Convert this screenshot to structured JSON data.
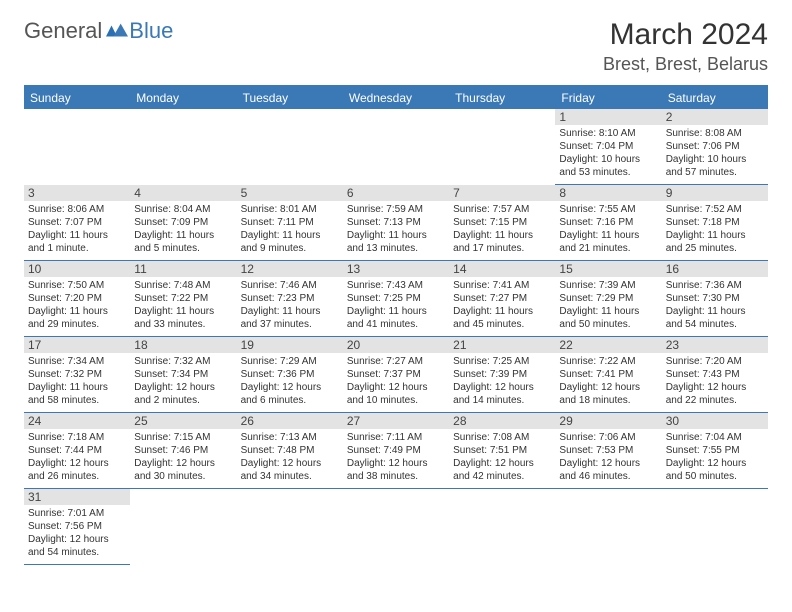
{
  "logo": {
    "part1": "General",
    "part2": "Blue"
  },
  "title": "March 2024",
  "location": "Brest, Brest, Belarus",
  "weekdays": [
    "Sunday",
    "Monday",
    "Tuesday",
    "Wednesday",
    "Thursday",
    "Friday",
    "Saturday"
  ],
  "colors": {
    "accent": "#3a78b6",
    "daybar": "#e3e3e3",
    "text": "#333333"
  },
  "layout": {
    "leading_blanks": 5,
    "days_in_month": 31
  },
  "days": [
    {
      "n": 1,
      "sunrise": "8:10 AM",
      "sunset": "7:04 PM",
      "daylight": "10 hours and 53 minutes."
    },
    {
      "n": 2,
      "sunrise": "8:08 AM",
      "sunset": "7:06 PM",
      "daylight": "10 hours and 57 minutes."
    },
    {
      "n": 3,
      "sunrise": "8:06 AM",
      "sunset": "7:07 PM",
      "daylight": "11 hours and 1 minute."
    },
    {
      "n": 4,
      "sunrise": "8:04 AM",
      "sunset": "7:09 PM",
      "daylight": "11 hours and 5 minutes."
    },
    {
      "n": 5,
      "sunrise": "8:01 AM",
      "sunset": "7:11 PM",
      "daylight": "11 hours and 9 minutes."
    },
    {
      "n": 6,
      "sunrise": "7:59 AM",
      "sunset": "7:13 PM",
      "daylight": "11 hours and 13 minutes."
    },
    {
      "n": 7,
      "sunrise": "7:57 AM",
      "sunset": "7:15 PM",
      "daylight": "11 hours and 17 minutes."
    },
    {
      "n": 8,
      "sunrise": "7:55 AM",
      "sunset": "7:16 PM",
      "daylight": "11 hours and 21 minutes."
    },
    {
      "n": 9,
      "sunrise": "7:52 AM",
      "sunset": "7:18 PM",
      "daylight": "11 hours and 25 minutes."
    },
    {
      "n": 10,
      "sunrise": "7:50 AM",
      "sunset": "7:20 PM",
      "daylight": "11 hours and 29 minutes."
    },
    {
      "n": 11,
      "sunrise": "7:48 AM",
      "sunset": "7:22 PM",
      "daylight": "11 hours and 33 minutes."
    },
    {
      "n": 12,
      "sunrise": "7:46 AM",
      "sunset": "7:23 PM",
      "daylight": "11 hours and 37 minutes."
    },
    {
      "n": 13,
      "sunrise": "7:43 AM",
      "sunset": "7:25 PM",
      "daylight": "11 hours and 41 minutes."
    },
    {
      "n": 14,
      "sunrise": "7:41 AM",
      "sunset": "7:27 PM",
      "daylight": "11 hours and 45 minutes."
    },
    {
      "n": 15,
      "sunrise": "7:39 AM",
      "sunset": "7:29 PM",
      "daylight": "11 hours and 50 minutes."
    },
    {
      "n": 16,
      "sunrise": "7:36 AM",
      "sunset": "7:30 PM",
      "daylight": "11 hours and 54 minutes."
    },
    {
      "n": 17,
      "sunrise": "7:34 AM",
      "sunset": "7:32 PM",
      "daylight": "11 hours and 58 minutes."
    },
    {
      "n": 18,
      "sunrise": "7:32 AM",
      "sunset": "7:34 PM",
      "daylight": "12 hours and 2 minutes."
    },
    {
      "n": 19,
      "sunrise": "7:29 AM",
      "sunset": "7:36 PM",
      "daylight": "12 hours and 6 minutes."
    },
    {
      "n": 20,
      "sunrise": "7:27 AM",
      "sunset": "7:37 PM",
      "daylight": "12 hours and 10 minutes."
    },
    {
      "n": 21,
      "sunrise": "7:25 AM",
      "sunset": "7:39 PM",
      "daylight": "12 hours and 14 minutes."
    },
    {
      "n": 22,
      "sunrise": "7:22 AM",
      "sunset": "7:41 PM",
      "daylight": "12 hours and 18 minutes."
    },
    {
      "n": 23,
      "sunrise": "7:20 AM",
      "sunset": "7:43 PM",
      "daylight": "12 hours and 22 minutes."
    },
    {
      "n": 24,
      "sunrise": "7:18 AM",
      "sunset": "7:44 PM",
      "daylight": "12 hours and 26 minutes."
    },
    {
      "n": 25,
      "sunrise": "7:15 AM",
      "sunset": "7:46 PM",
      "daylight": "12 hours and 30 minutes."
    },
    {
      "n": 26,
      "sunrise": "7:13 AM",
      "sunset": "7:48 PM",
      "daylight": "12 hours and 34 minutes."
    },
    {
      "n": 27,
      "sunrise": "7:11 AM",
      "sunset": "7:49 PM",
      "daylight": "12 hours and 38 minutes."
    },
    {
      "n": 28,
      "sunrise": "7:08 AM",
      "sunset": "7:51 PM",
      "daylight": "12 hours and 42 minutes."
    },
    {
      "n": 29,
      "sunrise": "7:06 AM",
      "sunset": "7:53 PM",
      "daylight": "12 hours and 46 minutes."
    },
    {
      "n": 30,
      "sunrise": "7:04 AM",
      "sunset": "7:55 PM",
      "daylight": "12 hours and 50 minutes."
    },
    {
      "n": 31,
      "sunrise": "7:01 AM",
      "sunset": "7:56 PM",
      "daylight": "12 hours and 54 minutes."
    }
  ],
  "labels": {
    "sunrise": "Sunrise:",
    "sunset": "Sunset:",
    "daylight": "Daylight:"
  }
}
